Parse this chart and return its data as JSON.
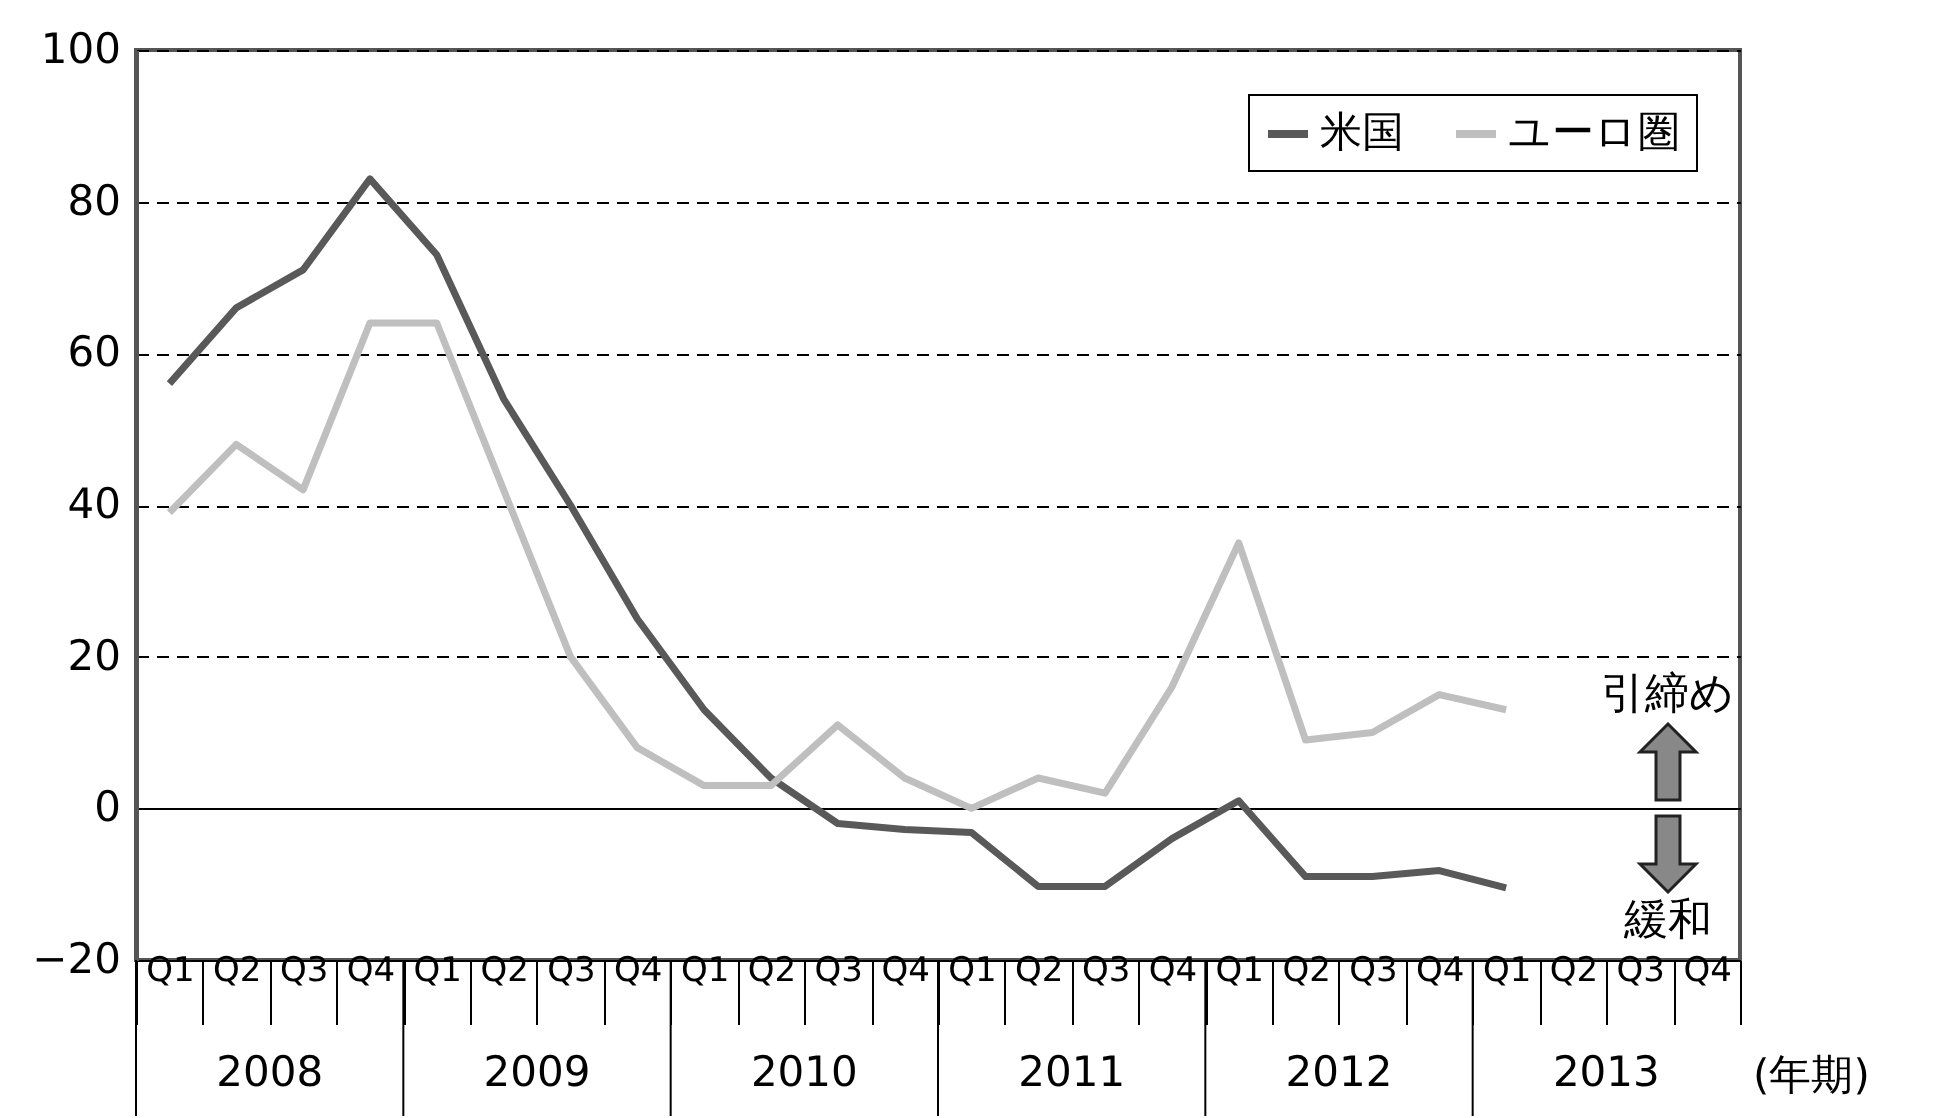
{
  "chart_data": {
    "type": "line",
    "xlabel": "(年期)",
    "categories": [
      "Q1",
      "Q2",
      "Q3",
      "Q4",
      "Q1",
      "Q2",
      "Q3",
      "Q4",
      "Q1",
      "Q2",
      "Q3",
      "Q4",
      "Q1",
      "Q2",
      "Q3",
      "Q4",
      "Q1",
      "Q2",
      "Q3",
      "Q4",
      "Q1",
      "Q2",
      "Q3",
      "Q4"
    ],
    "series": [
      {
        "name": "米国",
        "color": "#595959",
        "values": [
          56,
          66,
          71,
          83,
          73,
          54,
          40,
          25,
          13,
          4,
          -2,
          -2.8,
          -3.2,
          -10.3,
          -10.3,
          -4,
          1,
          -9,
          -9,
          -8.2,
          -10.5,
          null,
          null,
          null
        ]
      },
      {
        "name": "ユーロ圏",
        "color": "#bfbfbf",
        "values": [
          39,
          48,
          42,
          64,
          64,
          42,
          20,
          8,
          3,
          3,
          11,
          4,
          0,
          4,
          2,
          16,
          35,
          9,
          10,
          15,
          13,
          null,
          null,
          null
        ]
      }
    ],
    "ylim": [
      -20,
      100
    ],
    "yticks": [
      -20,
      0,
      20,
      40,
      60,
      80,
      100
    ],
    "grid": "y",
    "legend": "top right",
    "line_style": "solid",
    "marker": "none",
    "annotations": [
      "2008",
      "2009",
      "2010",
      "2011",
      "2012",
      "2013",
      "引締め",
      "緩和"
    ]
  }
}
